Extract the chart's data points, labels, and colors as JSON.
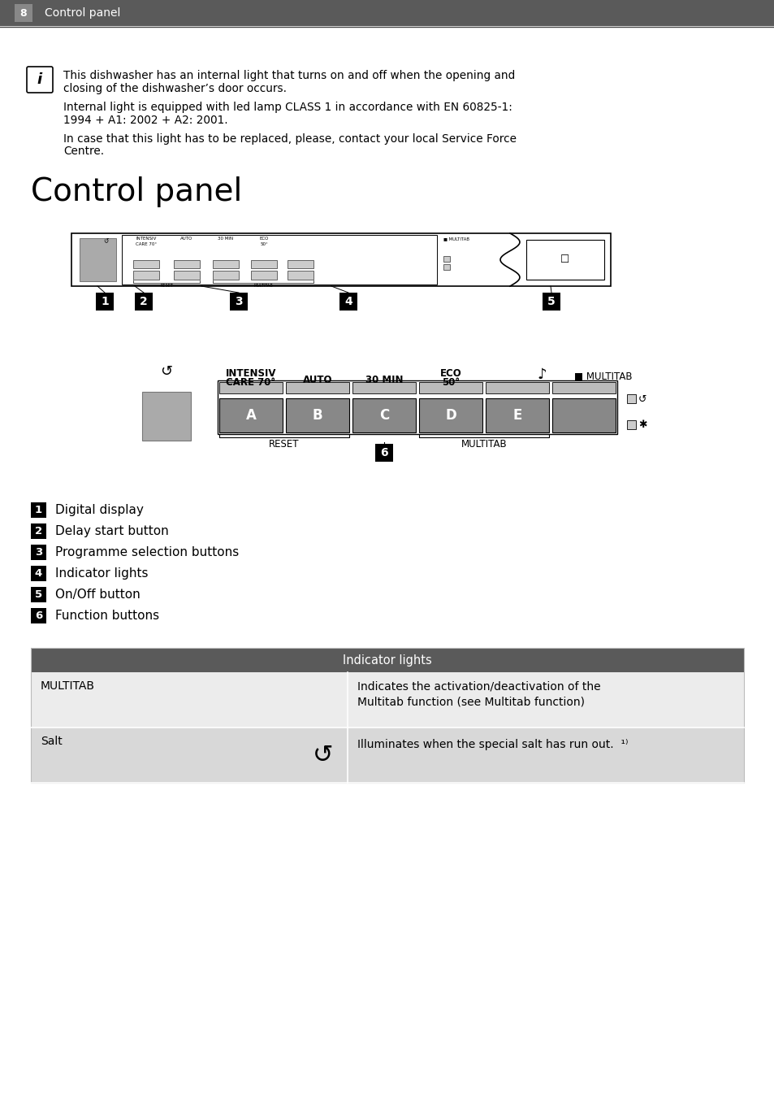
{
  "page_num": "8",
  "page_title": "Control panel",
  "bg_color": "#ffffff",
  "header_bg": "#5a5a5a",
  "header_text_color": "#ffffff",
  "info_box_text_para1": [
    "This dishwasher has an internal light that turns on and off when the opening and",
    "closing of the dishwasher’s door occurs."
  ],
  "info_box_text_para2": [
    "Internal light is equipped with led lamp CLASS 1 in accordance with EN 60825-1:",
    "1994 + A1: 2002 + A2: 2001."
  ],
  "info_box_text_para3": [
    "In case that this light has to be replaced, please, contact your local Service Force",
    "Centre."
  ],
  "section_title": "Control panel",
  "numbered_items": [
    {
      "num": "1",
      "label": "Digital display"
    },
    {
      "num": "2",
      "label": "Delay start button"
    },
    {
      "num": "3",
      "label": "Programme selection buttons"
    },
    {
      "num": "4",
      "label": "Indicator lights"
    },
    {
      "num": "5",
      "label": "On/Off button"
    },
    {
      "num": "6",
      "label": "Function buttons"
    }
  ],
  "table_header": "Indicator lights",
  "table_header_bg": "#5a5a5a",
  "table_header_text_color": "#ffffff",
  "table_row1_bg": "#ececec",
  "table_row2_bg": "#d8d8d8",
  "reset_label": "RESET",
  "multitab_label": "MULTITAB",
  "superscript_1": "1)"
}
